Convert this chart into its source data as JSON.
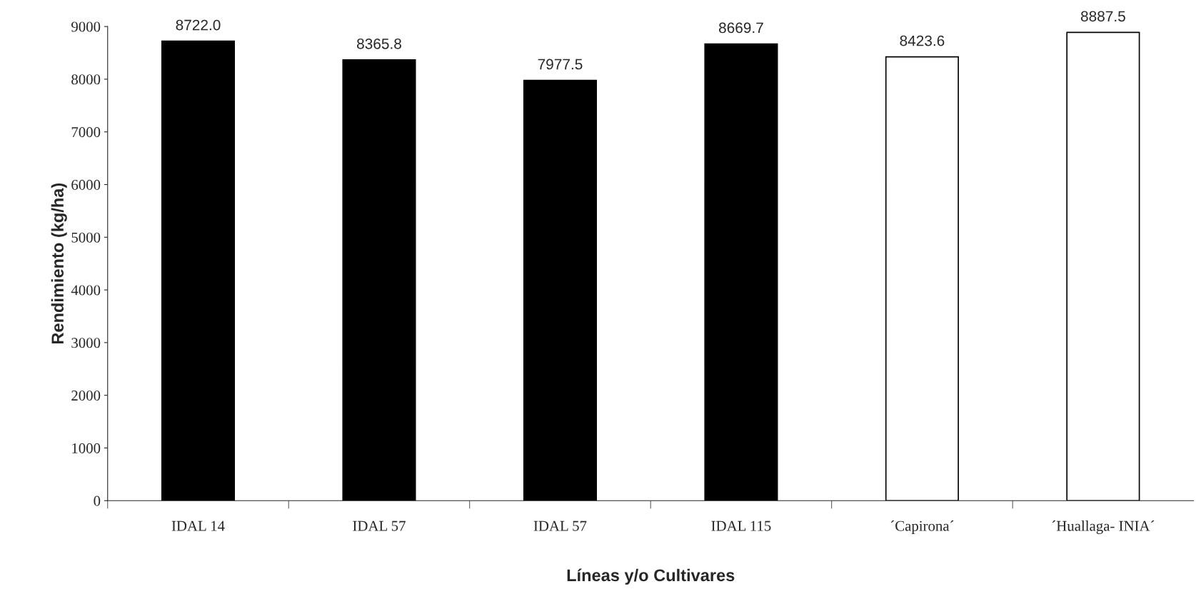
{
  "chart_data": {
    "type": "bar",
    "categories": [
      "IDAL 14",
      "IDAL 57",
      "IDAL 57",
      "IDAL 115",
      "´Capirona´",
      "´Huallaga- INIA´"
    ],
    "values": [
      8722.0,
      8365.8,
      7977.5,
      8669.7,
      8423.6,
      8887.5
    ],
    "value_labels": [
      "8722.0",
      "8365.8",
      "7977.5",
      "8669.7",
      "8423.6",
      "8887.5"
    ],
    "colors": [
      "#000000",
      "#000000",
      "#000000",
      "#000000",
      "#ffffff",
      "#ffffff"
    ],
    "xlabel": "Líneas y/o Cultivares",
    "ylabel": "Rendimiento (kg/ha)",
    "ylim": [
      0,
      9000
    ],
    "yticks": [
      0,
      1000,
      2000,
      3000,
      4000,
      5000,
      6000,
      7000,
      8000,
      9000
    ],
    "grid": false,
    "legend": false
  }
}
